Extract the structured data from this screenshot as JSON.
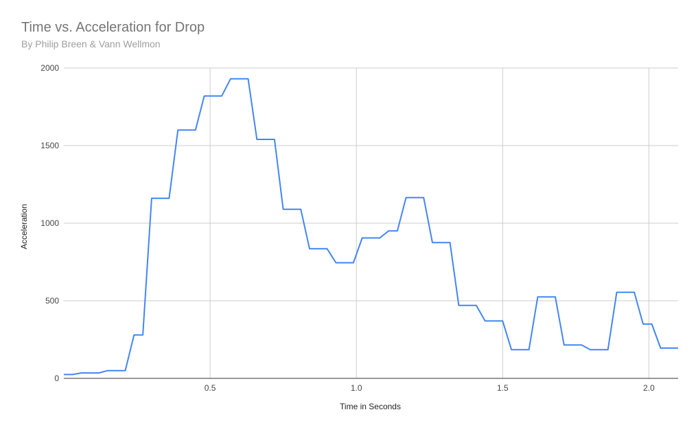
{
  "chart_data": {
    "type": "line",
    "title": "Time vs. Acceleration for Drop",
    "subtitle": "By Philip Breen & Vann Wellmon",
    "xlabel": "Time in Seconds",
    "ylabel": "Acceleration",
    "xlim": [
      0.0,
      2.1
    ],
    "ylim": [
      0,
      2000
    ],
    "x_ticks": [
      0.5,
      1.0,
      1.5,
      2.0
    ],
    "x_tick_labels": [
      "0.5",
      "1.0",
      "1.5",
      "2.0"
    ],
    "y_ticks": [
      0,
      500,
      1000,
      1500,
      2000
    ],
    "y_tick_labels": [
      "0",
      "500",
      "1000",
      "1500",
      "2000"
    ],
    "grid": true,
    "legend": "none",
    "series": [
      {
        "color": "#4285f4",
        "x": [
          0.0,
          0.03,
          0.06,
          0.12,
          0.15,
          0.21,
          0.24,
          0.27,
          0.3,
          0.33,
          0.36,
          0.39,
          0.42,
          0.45,
          0.48,
          0.51,
          0.54,
          0.57,
          0.6,
          0.63,
          0.66,
          0.69,
          0.72,
          0.75,
          0.78,
          0.81,
          0.84,
          0.87,
          0.9,
          0.93,
          0.96,
          0.99,
          1.02,
          1.05,
          1.08,
          1.11,
          1.14,
          1.17,
          1.2,
          1.23,
          1.26,
          1.29,
          1.32,
          1.35,
          1.38,
          1.41,
          1.44,
          1.47,
          1.5,
          1.53,
          1.56,
          1.59,
          1.62,
          1.65,
          1.68,
          1.71,
          1.74,
          1.77,
          1.8,
          1.83,
          1.86,
          1.89,
          1.92,
          1.95,
          1.98,
          2.01,
          2.04,
          2.07,
          2.1
        ],
        "y": [
          25,
          25,
          35,
          35,
          50,
          50,
          280,
          280,
          1160,
          1160,
          1160,
          1600,
          1600,
          1600,
          1820,
          1820,
          1820,
          1930,
          1930,
          1930,
          1540,
          1540,
          1540,
          1090,
          1090,
          1090,
          835,
          835,
          835,
          745,
          745,
          745,
          905,
          905,
          905,
          950,
          950,
          1165,
          1165,
          1165,
          875,
          875,
          875,
          470,
          470,
          470,
          370,
          370,
          370,
          185,
          185,
          185,
          525,
          525,
          525,
          215,
          215,
          215,
          185,
          185,
          185,
          555,
          555,
          555,
          350,
          350,
          195,
          195,
          195
        ]
      }
    ]
  }
}
